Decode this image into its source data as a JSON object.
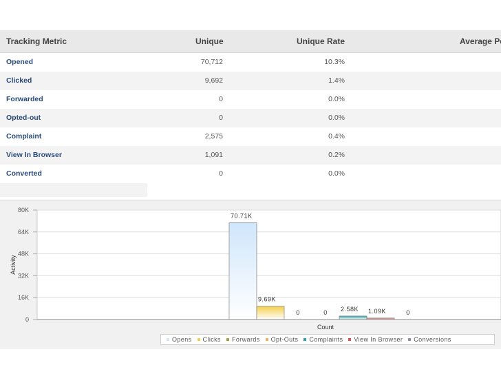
{
  "table": {
    "columns": [
      "Tracking Metric",
      "Unique",
      "Unique Rate",
      "Average Pe"
    ],
    "rows": [
      {
        "name": "Opened",
        "unique": "70,712",
        "rate": "10.3%"
      },
      {
        "name": "Clicked",
        "unique": "9,692",
        "rate": "1.4%"
      },
      {
        "name": "Forwarded",
        "unique": "0",
        "rate": "0.0%"
      },
      {
        "name": "Opted-out",
        "unique": "0",
        "rate": "0.0%"
      },
      {
        "name": "Complaint",
        "unique": "2,575",
        "rate": "0.4%"
      },
      {
        "name": "View In Browser",
        "unique": "1,091",
        "rate": "0.2%"
      },
      {
        "name": "Converted",
        "unique": "0",
        "rate": "0.0%"
      }
    ]
  },
  "chart_data": {
    "type": "bar",
    "ylabel": "Activity",
    "xlabel": "Count",
    "ylim": [
      0,
      80000
    ],
    "yticks": [
      "0",
      "16K",
      "32K",
      "48K",
      "64K",
      "80K"
    ],
    "grid": "horizontal",
    "legend_position": "bottom",
    "series": [
      {
        "name": "Opens",
        "value": 70712,
        "label": "70.71K",
        "color": "#cfe6fb"
      },
      {
        "name": "Clicks",
        "value": 9692,
        "label": "9.69K",
        "color": "#f4cf4a"
      },
      {
        "name": "Forwards",
        "value": 0,
        "label": "0",
        "color": "#a2a03a"
      },
      {
        "name": "Opt-Outs",
        "value": 0,
        "label": "0",
        "color": "#f0b060"
      },
      {
        "name": "Complaints",
        "value": 2575,
        "label": "2.58K",
        "color": "#2aa1a8"
      },
      {
        "name": "View In Browser",
        "value": 1091,
        "label": "1.09K",
        "color": "#d9534f"
      },
      {
        "name": "Conversions",
        "value": 0,
        "label": "0",
        "color": "#8a8fa3"
      }
    ]
  }
}
